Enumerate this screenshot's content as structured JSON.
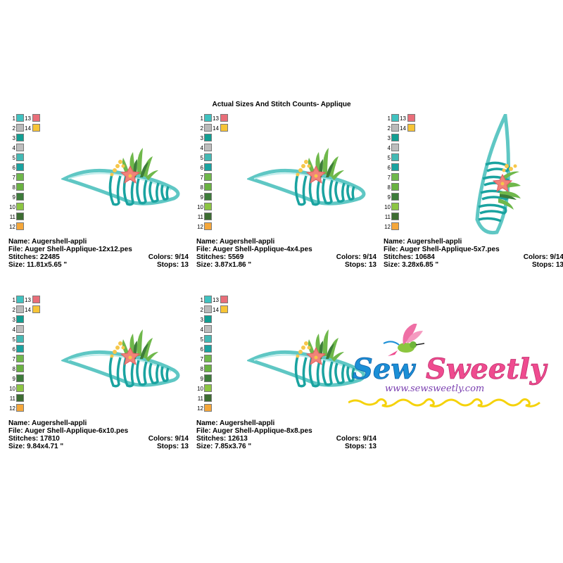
{
  "title": "Actual Sizes And Stitch Counts- Applique",
  "palette_colors": [
    "#40c2c0",
    "#b9b9b9",
    "#129e92",
    "#bdbdbd",
    "#43b9b4",
    "#1aa3a0",
    "#6fb84b",
    "#69b241",
    "#3d7c3a",
    "#8cc542",
    "#3d6d32",
    "#f5a73a",
    "#e96e79",
    "#f7c436"
  ],
  "labels": {
    "name": "Name:",
    "file": "File:",
    "stitches": "Stitches:",
    "size": "Size:",
    "colors": "Colors:",
    "stops": "Stops:"
  },
  "panels": [
    {
      "name": "Augershell-appli",
      "file": "Auger Shell-Applique-12x12.pes",
      "stitches": "22485",
      "size": "11.81x5.65 \"",
      "colors": "9/14",
      "stops": "13"
    },
    {
      "name": "Augershell-appli",
      "file": "Auger Shell-Applique-4x4.pes",
      "stitches": "5569",
      "size": "3.87x1.86 \"",
      "colors": "9/14",
      "stops": "13"
    },
    {
      "name": "Augershell-appli",
      "file": "Auger Shell-Applique-5x7.pes",
      "stitches": "10684",
      "size": "3.28x6.85 \"",
      "colors": "9/14",
      "stops": "13"
    },
    {
      "name": "Augershell-appli",
      "file": "Auger Shell-Applique-6x10.pes",
      "stitches": "17810",
      "size": "9.84x4.71 \"",
      "colors": "9/14",
      "stops": "13"
    },
    {
      "name": "Augershell-appli",
      "file": "Auger Shell-Applique-8x8.pes",
      "stitches": "12613",
      "size": "7.85x3.76 \"",
      "colors": "9/14",
      "stops": "13"
    }
  ],
  "logo": {
    "brand": "Sew Sweetly",
    "url": "www.sewsweetly.com"
  }
}
